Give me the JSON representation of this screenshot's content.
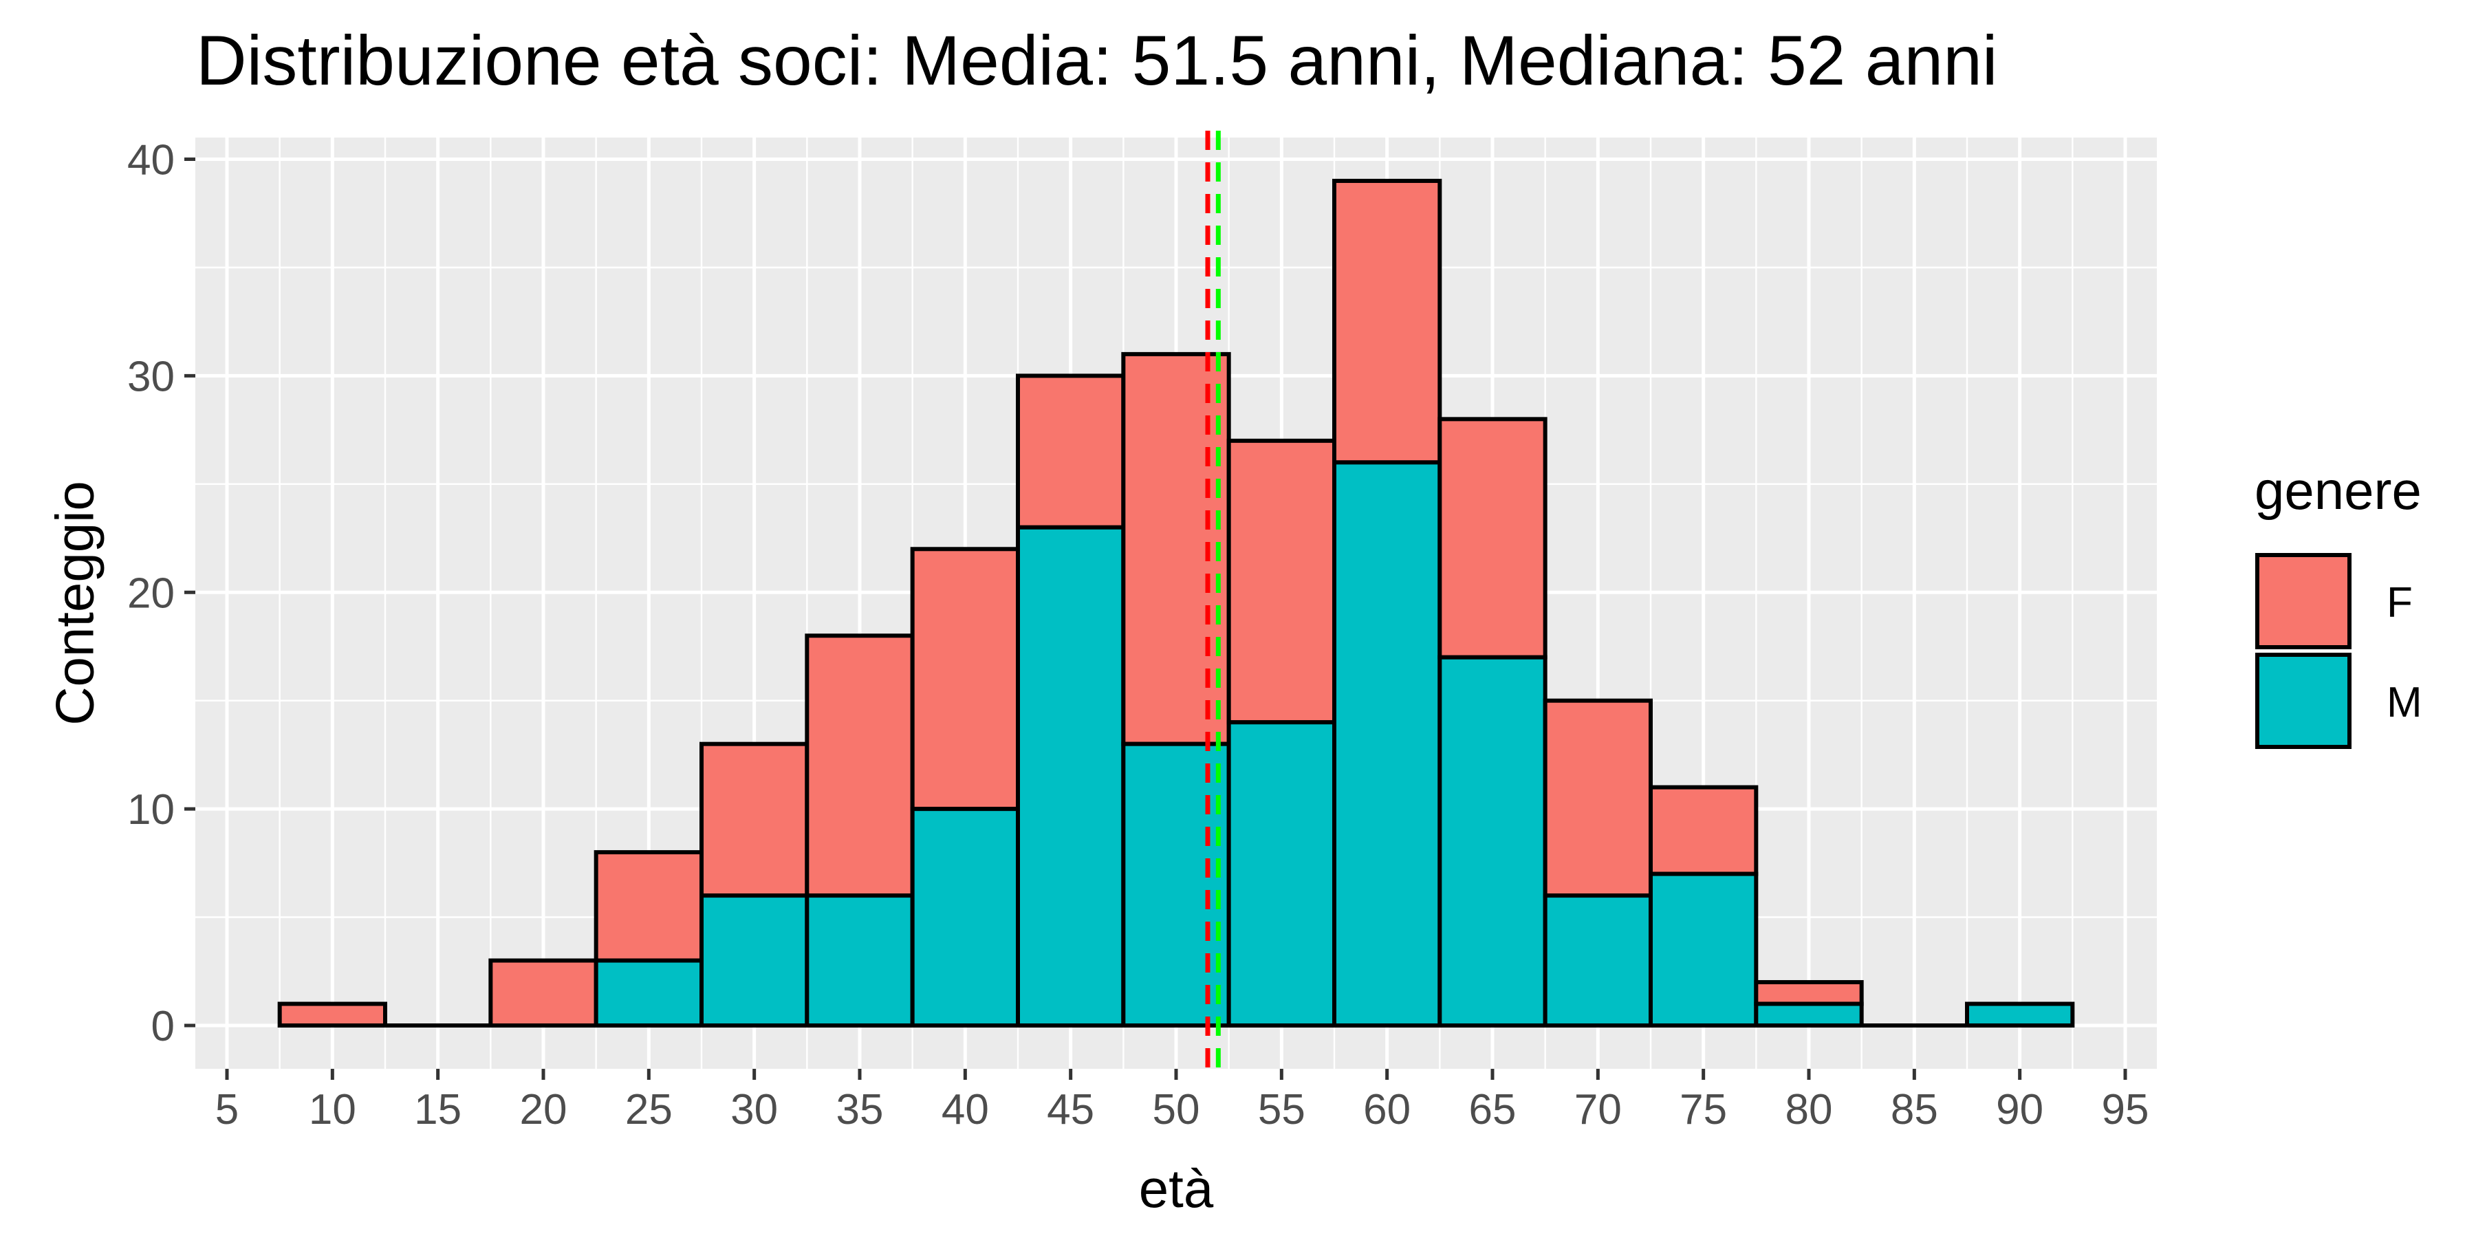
{
  "chart_data": {
    "type": "bar",
    "title": "Distribuzione età soci: Media: 51.5 anni, Mediana: 52 anni",
    "xlabel": "età",
    "ylabel": "Conteggio",
    "bin_width": 5,
    "x": [
      10,
      15,
      20,
      25,
      30,
      35,
      40,
      45,
      50,
      55,
      60,
      65,
      70,
      75,
      80,
      85,
      90
    ],
    "series": [
      {
        "name": "M",
        "color": "#00BFC4",
        "values": [
          0,
          0,
          0,
          3,
          6,
          6,
          10,
          23,
          13,
          14,
          26,
          17,
          6,
          7,
          1,
          0,
          1
        ]
      },
      {
        "name": "F",
        "color": "#F8766D",
        "values": [
          1,
          0,
          3,
          5,
          7,
          12,
          12,
          7,
          18,
          13,
          13,
          11,
          9,
          4,
          1,
          0,
          0
        ]
      }
    ],
    "stacked": true,
    "xlim": [
      3.5,
      96.5
    ],
    "ylim": [
      -2,
      41
    ],
    "xticks": [
      "5",
      "10",
      "15",
      "20",
      "25",
      "30",
      "35",
      "40",
      "45",
      "50",
      "55",
      "60",
      "65",
      "70",
      "75",
      "80",
      "85",
      "90",
      "95"
    ],
    "yticks": [
      "0",
      "10",
      "20",
      "30",
      "40"
    ],
    "reference_lines": [
      {
        "value": 51.5,
        "color": "#FF0000",
        "style": "dashed"
      },
      {
        "value": 52,
        "color": "#00FF00",
        "style": "dashed"
      }
    ],
    "legend": {
      "title": "genere",
      "position": "right",
      "entries": [
        {
          "label": "F",
          "color": "#F8766D"
        },
        {
          "label": "M",
          "color": "#00BFC4"
        }
      ]
    },
    "grid": true,
    "panel_background": "#EBEBEB"
  }
}
